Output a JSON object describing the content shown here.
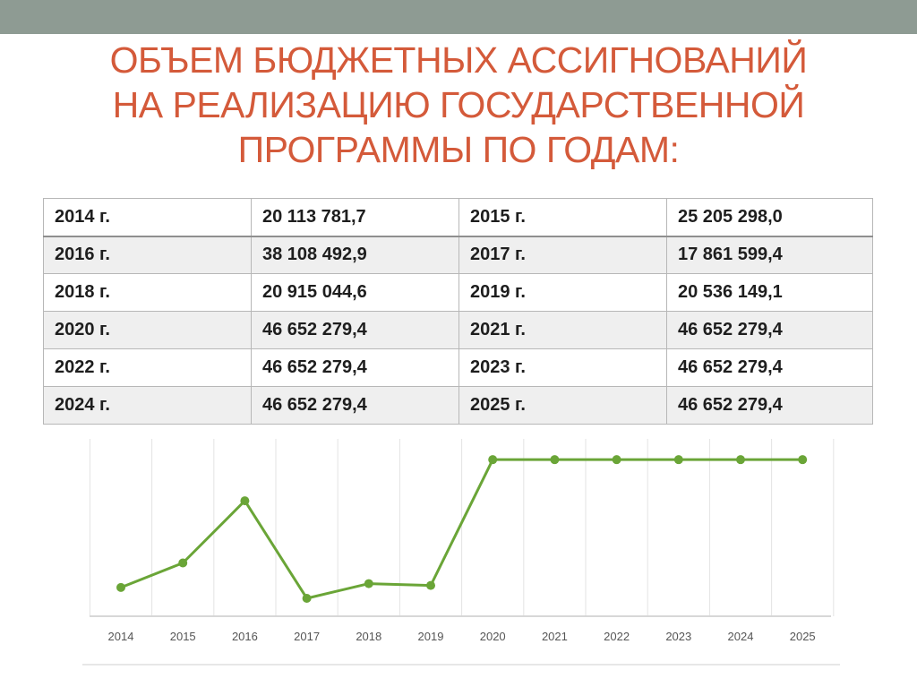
{
  "slide": {
    "title_lines": [
      "ОБЪЕМ БЮДЖЕТНЫХ АССИГНОВАНИЙ",
      "НА РЕАЛИЗАЦИЮ ГОСУДАРСТВЕННОЙ",
      "ПРОГРАММЫ ПО ГОДАМ:"
    ]
  },
  "table": {
    "rows": [
      {
        "year1": "2014 г.",
        "value1": "20 113 781,7",
        "year2": "2015 г.",
        "value2": "25 205 298,0"
      },
      {
        "year1": "2016 г.",
        "value1": "38 108 492,9",
        "year2": "2017 г.",
        "value2": "17 861 599,4"
      },
      {
        "year1": "2018 г.",
        "value1": "20 915 044,6",
        "year2": "2019 г.",
        "value2": "20 536 149,1"
      },
      {
        "year1": "2020 г.",
        "value1": "46 652 279,4",
        "year2": "2021 г.",
        "value2": "46 652 279,4"
      },
      {
        "year1": "2022 г.",
        "value1": "46 652 279,4",
        "year2": "2023 г.",
        "value2": "46 652 279,4"
      },
      {
        "year1": "2024 г.",
        "value1": "46 652 279,4",
        "year2": "2025 г.",
        "value2": "46 652 279,4"
      }
    ]
  },
  "chart_data": {
    "type": "line",
    "x": [
      "2014",
      "2015",
      "2016",
      "2017",
      "2018",
      "2019",
      "2020",
      "2021",
      "2022",
      "2023",
      "2024",
      "2025"
    ],
    "series": [
      {
        "values": [
          20113781.7,
          25205298.0,
          38108492.9,
          17861599.4,
          20915044.6,
          20536149.1,
          46652279.4,
          46652279.4,
          46652279.4,
          46652279.4,
          46652279.4,
          46652279.4
        ]
      }
    ],
    "grid": "vertical",
    "line_color": "#6aa537",
    "grid_color": "#e3e3e3",
    "axis_color": "#d7d7d7",
    "tick_color": "#555555"
  }
}
